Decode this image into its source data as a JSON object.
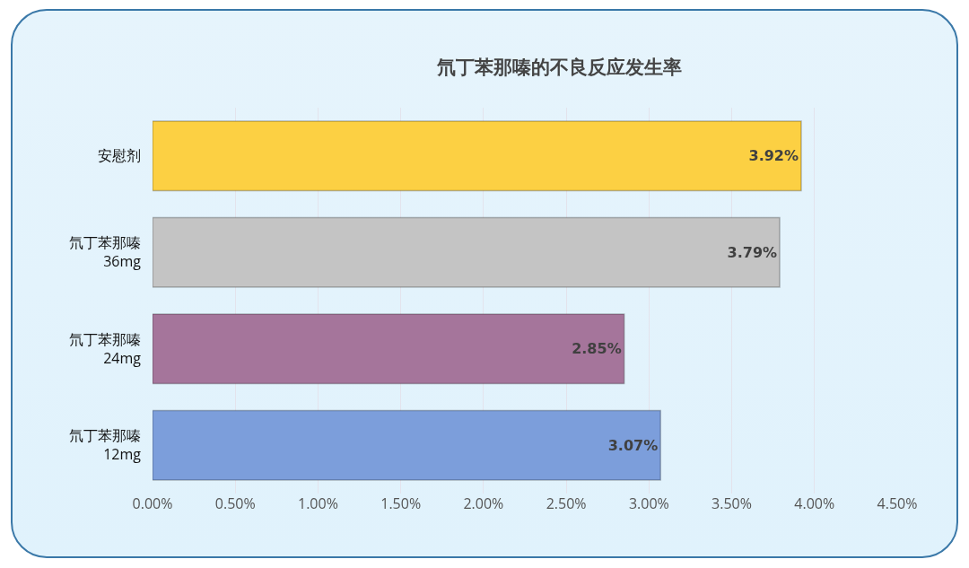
{
  "chart_data": {
    "type": "bar",
    "title": "氘丁苯那嗪的不良反应发生率",
    "orientation": "horizontal",
    "categories": [
      "安慰剂",
      "氘丁苯那嗪\n36mg",
      "氘丁苯那嗪\n24mg",
      "氘丁苯那嗪\n12mg"
    ],
    "values": [
      3.92,
      3.79,
      2.85,
      3.07
    ],
    "colors": [
      "#fcd043",
      "#c4c4c4",
      "#a5759b",
      "#7c9edb"
    ],
    "value_labels": [
      "3.92%",
      "3.79%",
      "2.85%",
      "3.07%"
    ],
    "xlim": [
      0,
      4.5
    ],
    "xticks": [
      {
        "value": 0,
        "label": "0.00%"
      },
      {
        "value": 0.5,
        "label": "0.50%"
      },
      {
        "value": 1,
        "label": "1.00%"
      },
      {
        "value": 1.5,
        "label": "1.50%"
      },
      {
        "value": 2,
        "label": "2.00%"
      },
      {
        "value": 2.5,
        "label": "2.50%"
      },
      {
        "value": 3,
        "label": "3.00%"
      },
      {
        "value": 3.5,
        "label": "3.50%"
      },
      {
        "value": 4,
        "label": "4.00%"
      },
      {
        "value": 4.5,
        "label": "4.50%"
      }
    ],
    "grid": "x"
  }
}
